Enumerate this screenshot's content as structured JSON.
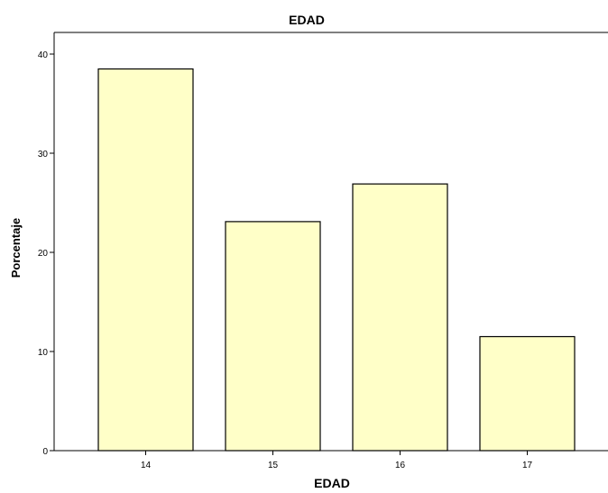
{
  "chart_data": {
    "type": "bar",
    "title": "EDAD",
    "xlabel": "EDAD",
    "ylabel": "Porcentaje",
    "categories": [
      "14",
      "15",
      "16",
      "17"
    ],
    "values": [
      38.5,
      23.1,
      26.9,
      11.5
    ],
    "yticks": [
      "0",
      "10",
      "20",
      "30",
      "40"
    ],
    "ylim": [
      0,
      42
    ],
    "grid": false,
    "legend": "none",
    "bar_color": "#ffffc8",
    "edge_color": "#000000"
  }
}
